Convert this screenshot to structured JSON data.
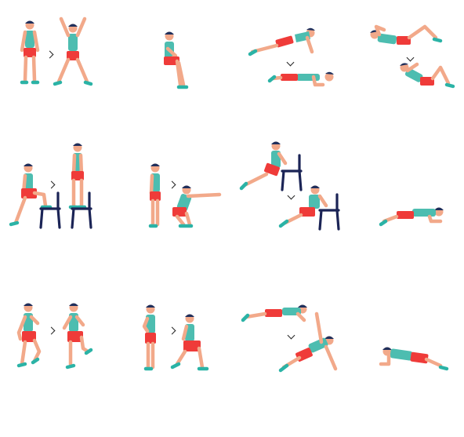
{
  "title": "",
  "colors": {
    "skin": "#F2A98A",
    "hair": "#1F2F5C",
    "shirt": "#4DBDB0",
    "shorts": "#EF3B39",
    "shoes": "#2BB3A6",
    "chair": "#1B2456",
    "arrow": "#222222",
    "background": "#FFFFFF"
  },
  "exercises": [
    {
      "id": 1,
      "name": "jumping-jacks",
      "poses": 2,
      "icon": "jumping-jacks-figure"
    },
    {
      "id": 2,
      "name": "wall-sit",
      "poses": 1,
      "icon": "wall-sit-figure"
    },
    {
      "id": 3,
      "name": "push-up",
      "poses": 2,
      "icon": "push-up-figure"
    },
    {
      "id": 4,
      "name": "abdominal-crunch",
      "poses": 2,
      "icon": "crunch-figure"
    },
    {
      "id": 5,
      "name": "step-up-onto-chair",
      "poses": 2,
      "icon": "step-up-figure"
    },
    {
      "id": 6,
      "name": "squat",
      "poses": 2,
      "icon": "squat-figure"
    },
    {
      "id": 7,
      "name": "triceps-dip-on-chair",
      "poses": 2,
      "icon": "triceps-dip-figure"
    },
    {
      "id": 8,
      "name": "plank",
      "poses": 1,
      "icon": "plank-figure"
    },
    {
      "id": 9,
      "name": "high-knees-running",
      "poses": 2,
      "icon": "high-knees-figure"
    },
    {
      "id": 10,
      "name": "lunge",
      "poses": 2,
      "icon": "lunge-figure"
    },
    {
      "id": 11,
      "name": "push-up-and-rotation",
      "poses": 2,
      "icon": "push-up-rotation-figure"
    },
    {
      "id": 12,
      "name": "side-plank",
      "poses": 1,
      "icon": "side-plank-figure"
    }
  ]
}
